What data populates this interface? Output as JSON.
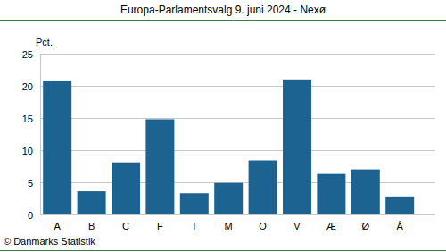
{
  "chart_data": {
    "type": "bar",
    "title": "Europa-Parlamentsvalg 9. juni 2024 - Nexø",
    "y_label": "Pct.",
    "source": "© Danmarks Statistik",
    "categories": [
      "A",
      "B",
      "C",
      "F",
      "I",
      "M",
      "O",
      "V",
      "Æ",
      "Ø",
      "Å"
    ],
    "values": [
      20.7,
      3.6,
      8.1,
      14.8,
      3.3,
      4.9,
      8.4,
      21.0,
      6.3,
      7.0,
      2.8
    ],
    "color": "#1c6392",
    "ylim": [
      0,
      25
    ],
    "yticks": [
      0,
      5,
      10,
      15,
      20,
      25
    ],
    "grid": true
  }
}
